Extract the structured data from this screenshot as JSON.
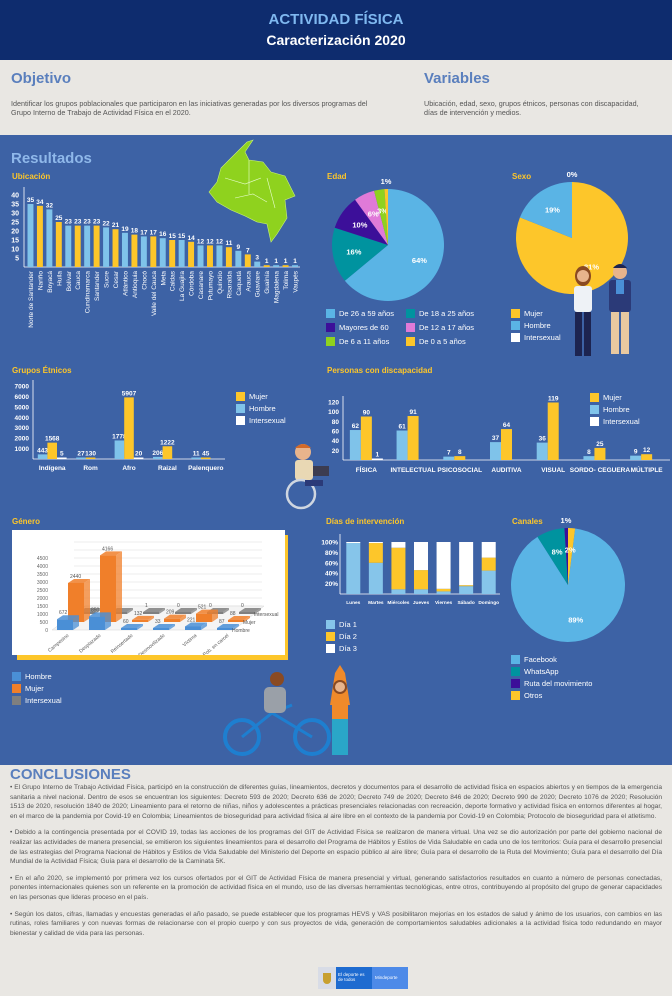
{
  "header": {
    "title": "ACTIVIDAD FÍSICA",
    "subtitle": "Caracterización 2020"
  },
  "objetivo": {
    "title": "Objetivo",
    "text": "Identificar los grupos poblacionales que participaron en las iniciativas generadas por los diversos programas del Grupo Interno de Trabajo de Actividad Física en el 2020."
  },
  "variables": {
    "title": "Variables",
    "text": "Ubicación, edad, sexo, grupos étnicos, personas con discapacidad, días de intervención y medios."
  },
  "resultados": {
    "title": "Resultados"
  },
  "chart_data": [
    {
      "title": "Ubicación",
      "type": "bar",
      "categories": [
        "Norte de Santander",
        "Nariño",
        "Boyacá",
        "Huila",
        "Bolívar",
        "Cauca",
        "Cundinamarca",
        "Santander",
        "Sucre",
        "Cesar",
        "Atlántico",
        "Antioquia",
        "Chocó",
        "Valle del Cauca",
        "Meta",
        "Caldas",
        "La Guajira",
        "Córdoba",
        "Casanare",
        "Putumayo",
        "Quindío",
        "Risaralda",
        "Caquetá",
        "Arauca",
        "Guaviare",
        "Guainía",
        "Magdalena",
        "Tolima",
        "Vaupés"
      ],
      "values": [
        35,
        34,
        32,
        25,
        23,
        23,
        23,
        23,
        22,
        21,
        19,
        18,
        17,
        17,
        16,
        15,
        15,
        14,
        12,
        12,
        12,
        11,
        9,
        7,
        3,
        1,
        1,
        1,
        1
      ],
      "ylim": [
        0,
        40
      ],
      "yticks": [
        5,
        10,
        15,
        20,
        25,
        30,
        35,
        40
      ],
      "colors": [
        "#7fc3ea",
        "#fdc62a"
      ]
    },
    {
      "title": "Edad",
      "type": "pie",
      "labels": [
        "De 26 a 59 años",
        "De 18 a 25 años",
        "Mayores de 60",
        "De 12 a 17 años",
        "De 6 a 11 años",
        "De 0 a 5 años"
      ],
      "values": [
        64,
        16,
        10,
        6,
        3,
        1
      ],
      "colors": [
        "#5ab4e5",
        "#00939f",
        "#3c0f99",
        "#e07ad8",
        "#8fd21e",
        "#fdc62a"
      ]
    },
    {
      "title": "Sexo",
      "type": "pie",
      "labels": [
        "Mujer",
        "Hombre",
        "Intersexual"
      ],
      "values": [
        81,
        19,
        0
      ],
      "colors": [
        "#fdc62a",
        "#5ab4e5",
        "#ffffff"
      ]
    },
    {
      "title": "Grupos Étnicos",
      "type": "bar",
      "categories": [
        "Indígena",
        "Rom",
        "Afro",
        "Raizal",
        "Palenquero"
      ],
      "series": [
        {
          "name": "Hombre",
          "values": [
            443,
            27,
            1778,
            206,
            11
          ]
        },
        {
          "name": "Mujer",
          "values": [
            1568,
            130,
            5907,
            1222,
            45
          ]
        },
        {
          "name": "Intersexual",
          "values": [
            5,
            null,
            20,
            null,
            null
          ]
        }
      ],
      "legend_order": [
        "Mujer",
        "Hombre",
        "Intersexual"
      ],
      "ylim": [
        0,
        7000
      ],
      "yticks": [
        1000,
        2000,
        3000,
        4000,
        5000,
        6000,
        7000
      ],
      "colors": {
        "Hombre": "#7fc3ea",
        "Mujer": "#fdc62a",
        "Intersexual": "#ffffff"
      }
    },
    {
      "title": "Personas con discapacidad",
      "type": "bar",
      "categories": [
        "FÍSICA",
        "INTELECTUAL",
        "PSICOSOCIAL",
        "AUDITIVA",
        "VISUAL",
        "SORDO- CEGUERA",
        "MÚLTIPLE"
      ],
      "series": [
        {
          "name": "Hombre",
          "values": [
            62,
            61,
            7,
            37,
            36,
            8,
            9
          ]
        },
        {
          "name": "Mujer",
          "values": [
            90,
            91,
            8,
            64,
            119,
            25,
            12
          ]
        },
        {
          "name": "Intersexual",
          "values": [
            1,
            null,
            null,
            null,
            null,
            null,
            null
          ]
        }
      ],
      "legend_order": [
        "Mujer",
        "Hombre",
        "Intersexual"
      ],
      "ylim": [
        0,
        120
      ],
      "yticks": [
        20,
        40,
        60,
        80,
        100,
        120
      ],
      "colors": {
        "Hombre": "#7fc3ea",
        "Mujer": "#fdc62a",
        "Intersexual": "#ffffff"
      }
    },
    {
      "title": "Género",
      "type": "bar",
      "categories": [
        "Campesino",
        "Desplazado",
        "Reinsertado",
        "Desmovilizado",
        "Víctima",
        "Pob. en carcel"
      ],
      "series": [
        {
          "name": "Hombre",
          "values": [
            672,
            850,
            60,
            33,
            221,
            87
          ]
        },
        {
          "name": "Mujer",
          "values": [
            2440,
            4166,
            132,
            209,
            521,
            88
          ]
        },
        {
          "name": "Intersexual",
          "values": [
            0,
            3,
            1,
            0,
            0,
            0
          ]
        }
      ],
      "ylim": [
        0,
        4500
      ],
      "yticks": [
        0,
        500,
        1000,
        1500,
        2000,
        2500,
        3000,
        3500,
        4000,
        4500
      ],
      "colors": {
        "Hombre": "#4a8fd6",
        "Mujer": "#f07f2a",
        "Intersexual": "#7f7f7f"
      }
    },
    {
      "title": "Días de intervención",
      "type": "bar",
      "stacked": true,
      "categories": [
        "Lunes",
        "Martes",
        "Miércoles",
        "Jueves",
        "Viernes",
        "Sábado",
        "Domingo"
      ],
      "series": [
        {
          "name": "Día 1",
          "values": [
            98,
            60,
            9,
            9,
            5,
            15,
            45
          ]
        },
        {
          "name": "Día 2",
          "values": [
            0,
            38,
            80,
            37,
            5,
            2,
            25
          ]
        },
        {
          "name": "Día 3",
          "values": [
            2,
            2,
            11,
            54,
            90,
            83,
            30
          ]
        }
      ],
      "ylim": [
        0,
        100
      ],
      "yticks": [
        "20%",
        "40%",
        "60%",
        "80%",
        "100%"
      ],
      "colors": [
        "#86c5ea",
        "#fdc62a",
        "#ffffff"
      ]
    },
    {
      "title": "Canales",
      "type": "pie",
      "labels": [
        "Facebook",
        "WhatsApp",
        "Ruta del movimiento",
        "Otros"
      ],
      "values": [
        89,
        8,
        1,
        2
      ],
      "colors": [
        "#5ab4e5",
        "#00939f",
        "#3c0f99",
        "#fdc62a"
      ]
    }
  ],
  "conclusiones": {
    "title": "CONCLUSIONES",
    "paragraphs": [
      "• El Grupo Interno de Trabajo Actividad Física, participó en la construcción de diferentes guías, lineamientos, decretos y documentos para el desarrollo de actividad física en espacios abiertos y en tiempos de la emergencia sanitaria a nivel nacional. Dentro de esos se encuentran los siguientes: Decreto 593 de 2020; Decreto 636 de 2020; Decreto 749 de 2020; Decreto 846 de 2020; Decreto 990 de 2020; Decreto 1076 de 2020; Resolución 1513 de 2020, resolución 1840 de 2020; Lineamiento para el retorno de niñas, niños y adolescentes a prácticas presenciales relacionadas con recreación, deporte formativo y actividad física en entornos diferentes al hogar, en el marco de la pandemia por Covid-19 en Colombia; Lineamientos de bioseguridad para actividad física al aire libre en el contexto de la pandemia por Covid-19 en Colombia; Protocolo de bioseguridad para el atletismo.",
      "• Debido a la contingencia presentada por el COVID 19, todas las acciones de los programas del GIT de Actividad Física se realizaron de manera virtual. Una vez se dio autorización por parte del gobierno nacional de realizar las actividades de manera presencial, se emitieron los siguientes lineamientos para el desarrollo del Programa de Hábitos y Estilos de Vida Saludable en cada uno de los territorios: Guía para el desarrollo presencial de las estrategias del Programa Nacional de Hábitos y Estilos de Vida Saludable del Ministerio del Deporte en espacio público al aire libre; Guía para el desarrollo de la Ruta del Movimiento; Guía para el desarrollo del Día Mundial de la Actividad Física; Guía para el desarrollo de la Caminata 5K.",
      "• En el año 2020, se implementó por primera vez los cursos ofertados por el GIT de Actividad Física de manera presencial y virtual, generando satisfactorios resultados en cuanto a número de personas conectadas, ponentes internacionales quienes son un referente en la promoción de actividad física en el mundo, uso de las diversas herramientas tecnológicas, entre otros, contribuyendo al propósito del grupo de generar capacidades en las personas que lideras proceso en el país.",
      "• Según los datos, cifras, llamadas y encuestas generadas el año pasado, se puede establecer que los programas HEVS y VAS posibilitaron mejorías en los estados de salud y ánimo de los usuarios, con cambios en las rutinas, roles familiares y con nuevas formas de relacionarse con el propio cuerpo y con sus proyectos de vida, generación de comportamientos saludables adicionales a la actividad física todo redundando en mayor bienestar y calidad de vida para las personas."
    ]
  },
  "footer": {
    "logo_text1": "El deporte es de todos",
    "logo_text2": "Mindeporte"
  }
}
